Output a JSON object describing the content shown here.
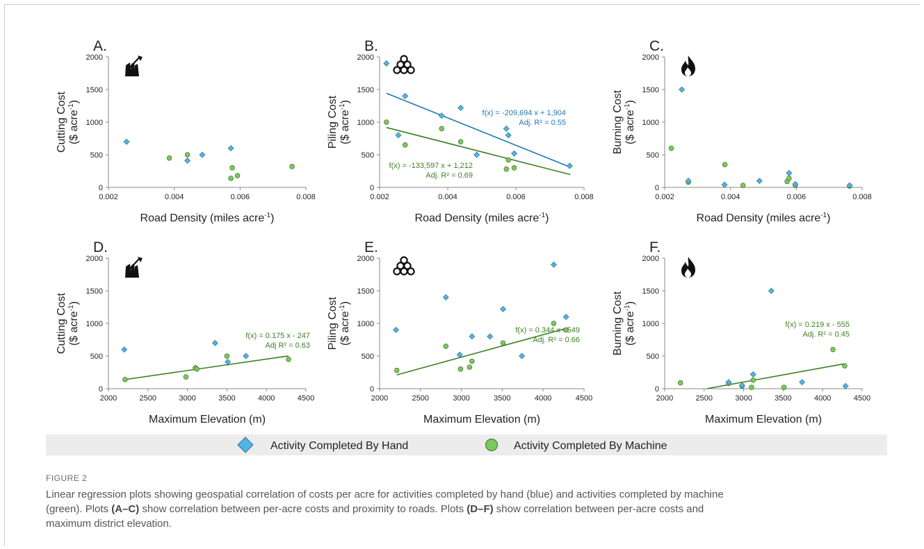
{
  "colors": {
    "hand": "#4db5e8",
    "machine": "#7cc95c",
    "hand_line": "#1f7ab2",
    "machine_line": "#3b7f22",
    "legend_bg": "#ececec"
  },
  "legend": {
    "hand_label": "Activity Completed By Hand",
    "machine_label": "Activity Completed By Machine"
  },
  "caption": {
    "label": "FIGURE 2",
    "line1": "Linear regression plots showing geospatial correlation of costs per acre for activities completed by hand (blue) and activities completed by machine",
    "line2_pre": "(green). Plots ",
    "ref_ac": "(A–C)",
    "line2_mid": " show correlation between per-acre costs and proximity to roads. Plots ",
    "ref_df": "(D–F)",
    "line2_post": " show correlation between per-acre costs and",
    "line3": "maximum district elevation."
  },
  "chart_data": [
    {
      "type": "scatter",
      "panel": "A.",
      "icon": "axe-icon",
      "ylabel_line1": "Cutting Cost",
      "ylabel_line2": "($ acre",
      "ylabel_sup": "-1",
      "ylabel_close": ")",
      "xlabel": "Road Density (miles acre",
      "xlabel_sup": "-1",
      "xlabel_close": ")",
      "xlim": [
        0.002,
        0.008
      ],
      "ylim": [
        0,
        2000
      ],
      "xticks": [
        "0.002",
        "0.004",
        "0.006",
        "0.008"
      ],
      "xtick_values": [
        0.002,
        0.004,
        0.006,
        0.008
      ],
      "yticks": [
        "0",
        "500",
        "1000",
        "1500",
        "2000"
      ],
      "ytick_values": [
        0,
        500,
        1000,
        1500,
        2000
      ],
      "hand": [
        [
          0.00255,
          700
        ],
        [
          0.0044,
          410
        ],
        [
          0.00485,
          500
        ],
        [
          0.00572,
          600
        ]
      ],
      "machine": [
        [
          0.00385,
          450
        ],
        [
          0.0044,
          500
        ],
        [
          0.00572,
          140
        ],
        [
          0.00576,
          300
        ],
        [
          0.00592,
          180
        ],
        [
          0.00758,
          320
        ]
      ],
      "fits": []
    },
    {
      "type": "scatter",
      "panel": "B.",
      "icon": "log-pile-icon",
      "ylabel_line1": "Piling Cost",
      "ylabel_line2": "($ acre",
      "ylabel_sup": "-1",
      "ylabel_close": ")",
      "xlabel": "Road Density (miles acre",
      "xlabel_sup": "-1",
      "xlabel_close": ")",
      "xlim": [
        0.002,
        0.008
      ],
      "ylim": [
        0,
        2000
      ],
      "xticks": [
        "0.002",
        "0.004",
        "0.006",
        "0.008"
      ],
      "xtick_values": [
        0.002,
        0.004,
        0.006,
        0.008
      ],
      "yticks": [
        "0",
        "500",
        "1000",
        "1500",
        "2000"
      ],
      "ytick_values": [
        0,
        500,
        1000,
        1500,
        2000
      ],
      "hand": [
        [
          0.0022,
          1900
        ],
        [
          0.00255,
          800
        ],
        [
          0.00275,
          1400
        ],
        [
          0.00382,
          1100
        ],
        [
          0.00438,
          1220
        ],
        [
          0.00485,
          500
        ],
        [
          0.00572,
          900
        ],
        [
          0.00578,
          800
        ],
        [
          0.00595,
          520
        ],
        [
          0.00758,
          330
        ]
      ],
      "machine": [
        [
          0.0022,
          1000
        ],
        [
          0.00275,
          650
        ],
        [
          0.00382,
          900
        ],
        [
          0.00438,
          700
        ],
        [
          0.00572,
          280
        ],
        [
          0.00578,
          420
        ],
        [
          0.00595,
          300
        ]
      ],
      "fits": [
        {
          "series": "hand",
          "slope": -209694,
          "intercept": 1904,
          "x": [
            0.0022,
            0.0076
          ],
          "eq": "f(x) = -209,694 x + 1,904",
          "r2": "Adj. R² = 0.55"
        },
        {
          "series": "machine",
          "slope": -133597,
          "intercept": 1212,
          "x": [
            0.0022,
            0.0076
          ],
          "eq": "f(x) = -133,597 x + 1,212",
          "r2": "Adj. R² = 0.69"
        }
      ]
    },
    {
      "type": "scatter",
      "panel": "C.",
      "icon": "fire-icon",
      "ylabel_line1": "Burning Cost",
      "ylabel_line2": "($ acre",
      "ylabel_sup": "-1",
      "ylabel_close": ")",
      "xlabel": "Road Density (miles acre",
      "xlabel_sup": "-1",
      "xlabel_close": ")",
      "xlim": [
        0.002,
        0.008
      ],
      "ylim": [
        0,
        2000
      ],
      "xticks": [
        "0.002",
        "0.004",
        "0.006",
        "0.008"
      ],
      "xtick_values": [
        0.002,
        0.004,
        0.006,
        0.008
      ],
      "yticks": [
        "0",
        "500",
        "1000",
        "1500",
        "2000"
      ],
      "ytick_values": [
        0,
        500,
        1000,
        1500,
        2000
      ],
      "hand": [
        [
          0.00252,
          1500
        ],
        [
          0.00272,
          100
        ],
        [
          0.00382,
          40
        ],
        [
          0.00488,
          100
        ],
        [
          0.00578,
          220
        ],
        [
          0.00597,
          50
        ],
        [
          0.00762,
          30
        ]
      ],
      "machine": [
        [
          0.0022,
          600
        ],
        [
          0.00272,
          80
        ],
        [
          0.00383,
          350
        ],
        [
          0.00438,
          30
        ],
        [
          0.00572,
          90
        ],
        [
          0.00578,
          140
        ],
        [
          0.00597,
          30
        ],
        [
          0.00762,
          20
        ]
      ],
      "fits": []
    },
    {
      "type": "scatter",
      "panel": "D.",
      "icon": "axe-icon",
      "ylabel_line1": "Cutting Cost",
      "ylabel_line2": "($ acre",
      "ylabel_sup": "-1",
      "ylabel_close": ")",
      "xlabel": "Maximum Elevation (m)",
      "xlabel_sup": "",
      "xlabel_close": "",
      "xlim": [
        2000,
        4500
      ],
      "ylim": [
        0,
        2000
      ],
      "xticks": [
        "2000",
        "2500",
        "3000",
        "3500",
        "4000",
        "4500"
      ],
      "xtick_values": [
        2000,
        2500,
        3000,
        3500,
        4000,
        4500
      ],
      "yticks": [
        "0",
        "500",
        "1000",
        "1500",
        "2000"
      ],
      "ytick_values": [
        0,
        500,
        1000,
        1500,
        2000
      ],
      "hand": [
        [
          2200,
          600
        ],
        [
          3350,
          700
        ],
        [
          3510,
          410
        ],
        [
          3740,
          500
        ]
      ],
      "machine": [
        [
          2210,
          140
        ],
        [
          2980,
          180
        ],
        [
          3100,
          320
        ],
        [
          3120,
          300
        ],
        [
          3500,
          500
        ],
        [
          4280,
          450
        ]
      ],
      "fits": [
        {
          "series": "machine",
          "slope": 0.175,
          "intercept": -247,
          "x": [
            2210,
            4280
          ],
          "eq": "f(x) = 0.175 x - 247",
          "r2": "Adj R² = 0.63"
        }
      ]
    },
    {
      "type": "scatter",
      "panel": "E.",
      "icon": "log-pile-icon",
      "ylabel_line1": "Piling Cost",
      "ylabel_line2": "($ acre",
      "ylabel_sup": "-1",
      "ylabel_close": ")",
      "xlabel": "Maximum Elevation (m)",
      "xlabel_sup": "",
      "xlabel_close": "",
      "xlim": [
        2000,
        4500
      ],
      "ylim": [
        0,
        2000
      ],
      "xticks": [
        "2000",
        "2500",
        "3000",
        "3500",
        "4000",
        "4500"
      ],
      "xtick_values": [
        2000,
        2500,
        3000,
        3500,
        4000,
        4500
      ],
      "yticks": [
        "0",
        "500",
        "1000",
        "1500",
        "2000"
      ],
      "ytick_values": [
        0,
        500,
        1000,
        1500,
        2000
      ],
      "hand": [
        [
          2200,
          900
        ],
        [
          2810,
          1400
        ],
        [
          2980,
          520
        ],
        [
          3130,
          800
        ],
        [
          3350,
          800
        ],
        [
          3510,
          1220
        ],
        [
          3740,
          500
        ],
        [
          4130,
          1900
        ],
        [
          4280,
          1100
        ]
      ],
      "machine": [
        [
          2210,
          280
        ],
        [
          2810,
          650
        ],
        [
          2990,
          300
        ],
        [
          3100,
          330
        ],
        [
          3130,
          420
        ],
        [
          3510,
          700
        ],
        [
          4130,
          1000
        ],
        [
          4280,
          900
        ]
      ],
      "fits": [
        {
          "series": "machine",
          "slope": 0.344,
          "intercept": -549,
          "x": [
            2210,
            4280
          ],
          "eq": "f(x) = 0.344 x - 549",
          "r2": "Adj. R² = 0.66"
        }
      ]
    },
    {
      "type": "scatter",
      "panel": "F.",
      "icon": "fire-icon",
      "ylabel_line1": "Burning Cost",
      "ylabel_line2": "($ acre",
      "ylabel_sup": "-1",
      "ylabel_close": ")",
      "xlabel": "Maximum Elevation (m)",
      "xlabel_sup": "",
      "xlabel_close": "",
      "xlim": [
        2000,
        4500
      ],
      "ylim": [
        0,
        2000
      ],
      "xticks": [
        "2000",
        "2500",
        "3000",
        "3500",
        "4000",
        "4500"
      ],
      "xtick_values": [
        2000,
        2500,
        3000,
        3500,
        4000,
        4500
      ],
      "yticks": [
        "0",
        "500",
        "1000",
        "1500",
        "2000"
      ],
      "ytick_values": [
        0,
        500,
        1000,
        1500,
        2000
      ],
      "hand": [
        [
          2810,
          100
        ],
        [
          2980,
          50
        ],
        [
          3120,
          220
        ],
        [
          3350,
          1500
        ],
        [
          3740,
          100
        ],
        [
          4290,
          40
        ]
      ],
      "machine": [
        [
          2200,
          90
        ],
        [
          2810,
          80
        ],
        [
          2980,
          40
        ],
        [
          3100,
          20
        ],
        [
          3120,
          130
        ],
        [
          3510,
          20
        ],
        [
          4130,
          600
        ],
        [
          4280,
          350
        ]
      ],
      "fits": [
        {
          "series": "machine",
          "slope": 0.219,
          "intercept": -555,
          "x": [
            2534,
            4280
          ],
          "eq": "f(x) = 0.219 x - 555",
          "r2": "Adj. R² = 0.45"
        }
      ]
    }
  ]
}
